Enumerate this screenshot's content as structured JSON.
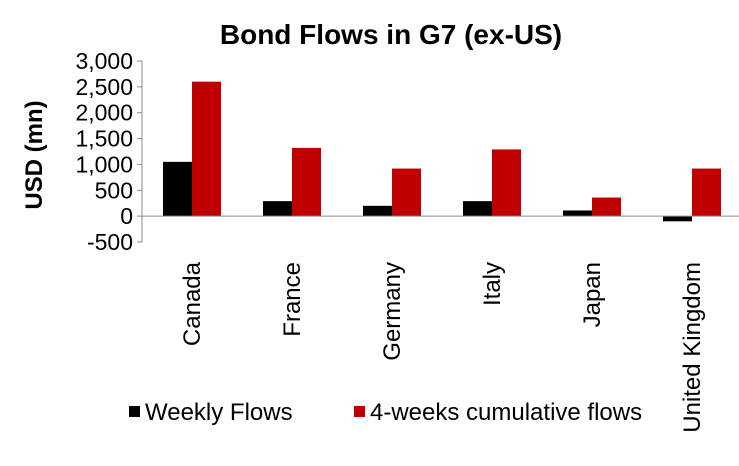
{
  "chart_data": {
    "type": "bar",
    "title": "Bond Flows in G7 (ex-US)",
    "xlabel": "",
    "ylabel": "USD (mn)",
    "ylim": [
      -500,
      3000
    ],
    "yticks": [
      -500,
      0,
      500,
      1000,
      1500,
      2000,
      2500,
      3000
    ],
    "ytick_labels": [
      "-500",
      "0",
      "500",
      "1,000",
      "1,500",
      "2,000",
      "2,500",
      "3,000"
    ],
    "grid": false,
    "legend_position": "bottom",
    "categories": [
      "Canada",
      "France",
      "Germany",
      "Italy",
      "Japan",
      "United Kingdom"
    ],
    "series": [
      {
        "name": "Weekly Flows",
        "color": "#000000",
        "values": [
          1050,
          290,
          200,
          290,
          110,
          -100
        ]
      },
      {
        "name": "4-weeks cumulative flows",
        "color": "#c00000",
        "values": [
          2600,
          1320,
          920,
          1290,
          360,
          920
        ]
      }
    ]
  }
}
